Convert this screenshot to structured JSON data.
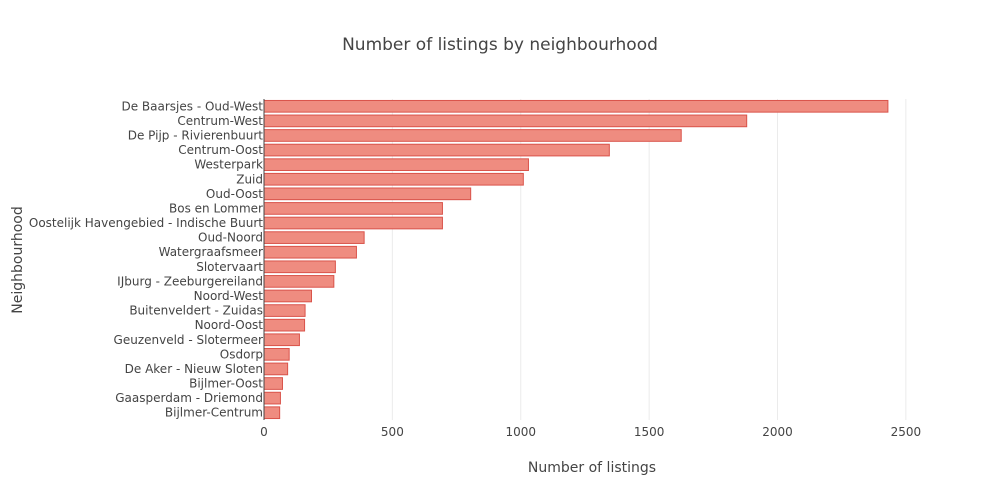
{
  "chart_data": {
    "type": "bar",
    "orientation": "horizontal",
    "title": "Number of listings by neighbourhood",
    "xlabel": "Number of listings",
    "ylabel": "Neighbourhood",
    "xlim": [
      0,
      2555
    ],
    "xticks": [
      0,
      500,
      1000,
      1500,
      2000,
      2500
    ],
    "grid": true,
    "legend": "none",
    "bar_color": "#ef8c80",
    "bar_edge_color": "#d9534a",
    "categories": [
      "De Baarsjes - Oud-West",
      "Centrum-West",
      "De Pijp - Rivierenbuurt",
      "Centrum-Oost",
      "Westerpark",
      "Zuid",
      "Oud-Oost",
      "Bos en Lommer",
      "Oostelijk Havengebied - Indische Buurt",
      "Oud-Noord",
      "Watergraafsmeer",
      "Slotervaart",
      "IJburg - Zeeburgereiland",
      "Noord-West",
      "Buitenveldert - Zuidas",
      "Noord-Oost",
      "Geuzenveld - Slotermeer",
      "Osdorp",
      "De Aker - Nieuw Sloten",
      "Bijlmer-Oost",
      "Gaasperdam - Driemond",
      "Bijlmer-Centrum"
    ],
    "values": [
      2430,
      1880,
      1625,
      1345,
      1030,
      1010,
      805,
      695,
      695,
      390,
      360,
      278,
      272,
      185,
      160,
      158,
      138,
      98,
      92,
      72,
      64,
      61
    ]
  }
}
